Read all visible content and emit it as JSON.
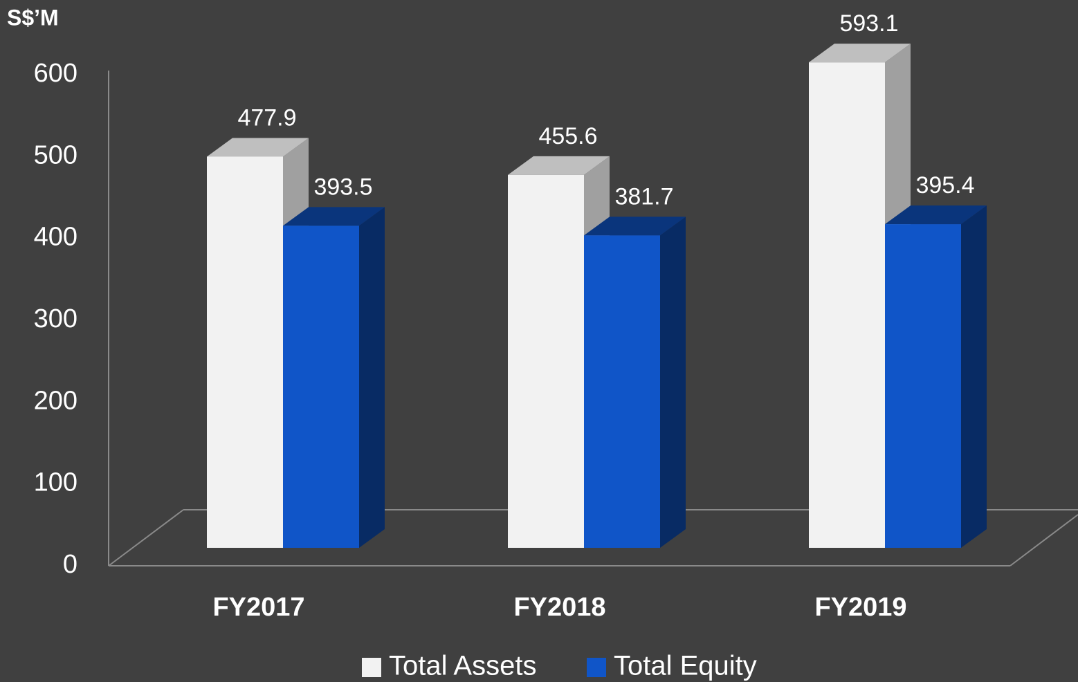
{
  "chart_data": {
    "type": "bar3d",
    "y_label": "S$’M",
    "categories": [
      "FY2017",
      "FY2018",
      "FY2019"
    ],
    "series": [
      {
        "name": "Total Assets",
        "color": "#f2f2f2",
        "values": [
          477.9,
          455.6,
          593.1
        ]
      },
      {
        "name": "Total Equity",
        "color": "#1055c8",
        "values": [
          393.5,
          381.7,
          395.4
        ]
      }
    ],
    "ylim": [
      0,
      600
    ],
    "yticks": [
      0,
      100,
      200,
      300,
      400,
      500,
      600
    ]
  }
}
